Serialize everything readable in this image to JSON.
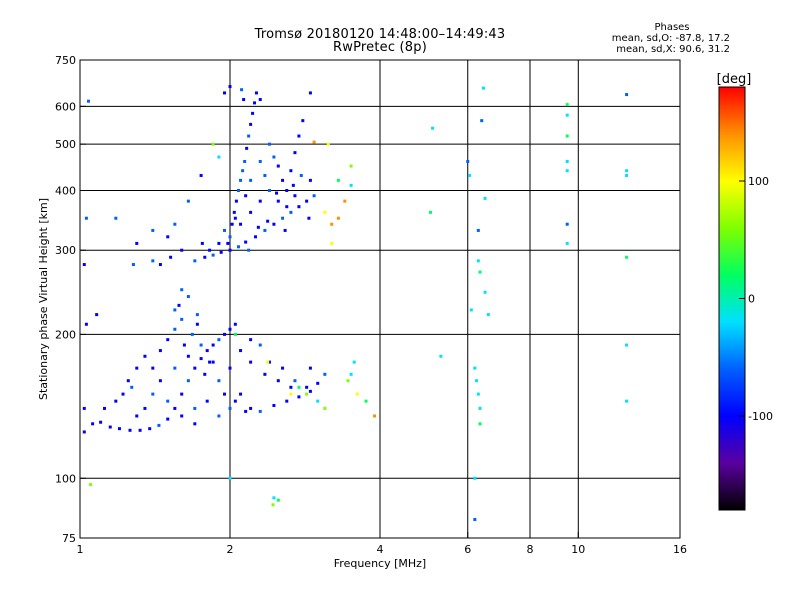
{
  "chart_data": {
    "type": "scatter",
    "title": "Tromsø 20180120 14:48:00–14:49:43",
    "subtitle": "RwPretec (8p)",
    "xlabel": "Frequency [MHz]",
    "ylabel": "Stationary phase Virtual Height [km]",
    "x_scale": "log",
    "y_scale": "log",
    "xlim": [
      1,
      16
    ],
    "ylim": [
      75,
      750
    ],
    "x_ticks": [
      1,
      2,
      4,
      6,
      8,
      10,
      16
    ],
    "x_tick_labels": [
      "1",
      "2",
      "4",
      "6",
      "8",
      "10",
      "16"
    ],
    "y_ticks": [
      75,
      100,
      200,
      300,
      400,
      500,
      600,
      750
    ],
    "y_tick_labels": [
      "75",
      "100",
      "200",
      "300",
      "400",
      "500",
      "600",
      "750"
    ],
    "x_gridlines": [
      2,
      4,
      6,
      8,
      10
    ],
    "y_gridlines": [
      100,
      200,
      300,
      400,
      500,
      600
    ],
    "grid": true,
    "colorbar": {
      "label": "[deg]",
      "range": [
        -180,
        180
      ],
      "ticks": [
        100,
        0,
        -100
      ],
      "tick_labels": [
        "100",
        "0",
        "-100"
      ],
      "colors": [
        "#000000",
        "#5a00a0",
        "#0000ff",
        "#0060ff",
        "#00e0ff",
        "#00ff60",
        "#80ff00",
        "#ffff00",
        "#ff9000",
        "#ff0000"
      ]
    },
    "phase_stats": {
      "header": "Phases",
      "line_o": "mean, sd,O:  -87.8, 17.2",
      "line_x": "mean, sd,X:  90.6, 31.2"
    },
    "series": [
      {
        "description": "O-mode F-region trace and blob (blue, phase about -90 deg)",
        "dominant_phase": -90,
        "points": [
          [
            1.06,
            130
          ],
          [
            1.1,
            131
          ],
          [
            1.15,
            128
          ],
          [
            1.2,
            127
          ],
          [
            1.26,
            126
          ],
          [
            1.32,
            126
          ],
          [
            1.38,
            127
          ],
          [
            1.44,
            129
          ],
          [
            1.5,
            133
          ],
          [
            1.55,
            140
          ],
          [
            1.6,
            150
          ],
          [
            1.65,
            160
          ],
          [
            1.7,
            170
          ],
          [
            1.75,
            178
          ],
          [
            1.8,
            185
          ],
          [
            1.85,
            190
          ],
          [
            1.9,
            195
          ],
          [
            1.95,
            200
          ],
          [
            2.0,
            205
          ],
          [
            2.05,
            210
          ],
          [
            1.45,
            185
          ],
          [
            1.5,
            195
          ],
          [
            1.55,
            205
          ],
          [
            1.6,
            215
          ],
          [
            1.58,
            230
          ],
          [
            1.62,
            190
          ],
          [
            1.68,
            200
          ],
          [
            1.72,
            210
          ],
          [
            1.78,
            165
          ],
          [
            1.82,
            175
          ],
          [
            1.9,
            160
          ],
          [
            2.1,
            150
          ],
          [
            2.2,
            140
          ],
          [
            2.3,
            138
          ],
          [
            2.45,
            142
          ],
          [
            2.6,
            145
          ],
          [
            2.75,
            148
          ],
          [
            2.9,
            152
          ],
          [
            3.0,
            158
          ],
          [
            3.1,
            165
          ],
          [
            2.2,
            175
          ],
          [
            2.35,
            165
          ],
          [
            2.5,
            160
          ],
          [
            2.7,
            160
          ],
          [
            2.85,
            155
          ],
          [
            1.7,
            140
          ],
          [
            1.8,
            145
          ],
          [
            1.95,
            150
          ],
          [
            2.05,
            145
          ],
          [
            2.15,
            138
          ],
          [
            1.4,
            150
          ],
          [
            1.35,
            140
          ],
          [
            1.3,
            135
          ],
          [
            1.25,
            160
          ],
          [
            1.3,
            170
          ],
          [
            1.35,
            180
          ],
          [
            1.4,
            170
          ],
          [
            1.45,
            160
          ],
          [
            1.55,
            170
          ],
          [
            1.65,
            180
          ],
          [
            1.75,
            190
          ],
          [
            1.85,
            175
          ],
          [
            2.0,
            170
          ],
          [
            2.1,
            185
          ],
          [
            2.2,
            195
          ],
          [
            2.3,
            190
          ],
          [
            2.4,
            175
          ],
          [
            2.55,
            170
          ],
          [
            2.65,
            155
          ],
          [
            2.9,
            170
          ],
          [
            1.5,
            145
          ],
          [
            1.6,
            135
          ],
          [
            1.7,
            130
          ],
          [
            1.9,
            135
          ],
          [
            2.0,
            140
          ],
          [
            1.55,
            225
          ],
          [
            1.65,
            240
          ],
          [
            1.6,
            248
          ],
          [
            1.72,
            220
          ],
          [
            1.08,
            220
          ],
          [
            1.03,
            210
          ],
          [
            1.02,
            140
          ],
          [
            1.02,
            125
          ],
          [
            1.12,
            140
          ],
          [
            1.18,
            145
          ],
          [
            1.22,
            150
          ],
          [
            1.27,
            155
          ]
        ]
      },
      {
        "description": "Upper F2 trace and cusp (blue/cyan)",
        "dominant_phase": -85,
        "points": [
          [
            1.7,
            285
          ],
          [
            1.78,
            290
          ],
          [
            1.85,
            293
          ],
          [
            1.92,
            297
          ],
          [
            2.0,
            300
          ],
          [
            2.08,
            305
          ],
          [
            2.15,
            312
          ],
          [
            2.25,
            320
          ],
          [
            2.35,
            330
          ],
          [
            2.45,
            340
          ],
          [
            2.55,
            350
          ],
          [
            2.65,
            360
          ],
          [
            2.75,
            370
          ],
          [
            2.85,
            380
          ],
          [
            2.95,
            390
          ],
          [
            2.0,
            320
          ],
          [
            2.02,
            340
          ],
          [
            2.04,
            360
          ],
          [
            2.06,
            380
          ],
          [
            2.08,
            400
          ],
          [
            2.1,
            420
          ],
          [
            2.12,
            440
          ],
          [
            2.14,
            460
          ],
          [
            2.16,
            490
          ],
          [
            2.18,
            520
          ],
          [
            2.2,
            550
          ],
          [
            2.22,
            580
          ],
          [
            2.24,
            610
          ],
          [
            2.26,
            640
          ],
          [
            2.3,
            620
          ],
          [
            2.4,
            500
          ],
          [
            2.45,
            470
          ],
          [
            2.5,
            450
          ],
          [
            2.55,
            420
          ],
          [
            2.6,
            400
          ],
          [
            2.65,
            440
          ],
          [
            2.7,
            480
          ],
          [
            2.75,
            520
          ],
          [
            2.8,
            560
          ],
          [
            2.2,
            360
          ],
          [
            2.3,
            380
          ],
          [
            2.4,
            400
          ],
          [
            2.5,
            380
          ],
          [
            2.6,
            370
          ],
          [
            2.7,
            390
          ],
          [
            1.95,
            330
          ],
          [
            1.9,
            310
          ],
          [
            1.82,
            300
          ],
          [
            1.76,
            310
          ],
          [
            1.6,
            300
          ],
          [
            1.52,
            290
          ],
          [
            1.45,
            280
          ],
          [
            1.4,
            285
          ],
          [
            1.3,
            310
          ],
          [
            1.28,
            280
          ],
          [
            2.1,
            340
          ],
          [
            2.2,
            420
          ],
          [
            2.3,
            460
          ],
          [
            2.35,
            430
          ],
          [
            2.15,
            390
          ],
          [
            2.05,
            350
          ],
          [
            1.98,
            310
          ],
          [
            2.18,
            300
          ],
          [
            2.28,
            335
          ],
          [
            2.38,
            345
          ],
          [
            2.48,
            395
          ],
          [
            2.58,
            330
          ],
          [
            2.68,
            410
          ],
          [
            2.78,
            430
          ],
          [
            2.88,
            350
          ],
          [
            2.9,
            420
          ],
          [
            2.13,
            620
          ],
          [
            2.11,
            650
          ],
          [
            1.95,
            640
          ],
          [
            2.0,
            660
          ],
          [
            1.75,
            430
          ],
          [
            1.65,
            380
          ],
          [
            1.55,
            340
          ],
          [
            1.5,
            320
          ],
          [
            1.4,
            330
          ],
          [
            1.18,
            350
          ],
          [
            1.02,
            280
          ],
          [
            1.03,
            350
          ],
          [
            1.04,
            615
          ],
          [
            2.9,
            640
          ]
        ]
      },
      {
        "description": "Scattered X-mode / high-frequency echoes (cyan to red)",
        "dominant_phase": 60,
        "points": [
          [
            3.1,
            360
          ],
          [
            3.2,
            340
          ],
          [
            3.3,
            350
          ],
          [
            3.4,
            380
          ],
          [
            3.5,
            410
          ],
          [
            3.5,
            450
          ],
          [
            3.3,
            420
          ],
          [
            3.2,
            310
          ],
          [
            3.45,
            160
          ],
          [
            3.6,
            150
          ],
          [
            3.75,
            145
          ],
          [
            3.9,
            135
          ],
          [
            3.5,
            165
          ],
          [
            3.55,
            175
          ],
          [
            3.1,
            140
          ],
          [
            3.0,
            145
          ],
          [
            2.85,
            150
          ],
          [
            2.75,
            155
          ],
          [
            2.65,
            150
          ],
          [
            3.15,
            500
          ],
          [
            2.95,
            505
          ],
          [
            2.5,
            90
          ],
          [
            2.45,
            91
          ],
          [
            2.44,
            88
          ],
          [
            1.85,
            500
          ],
          [
            1.9,
            470
          ],
          [
            2.05,
            200
          ],
          [
            1.05,
            97
          ],
          [
            2.0,
            100
          ],
          [
            2.38,
            175
          ]
        ]
      },
      {
        "description": "Isolated echoes 5-13 MHz",
        "dominant_phase": -20,
        "points": [
          [
            5.3,
            180
          ],
          [
            5.1,
            540
          ],
          [
            5.05,
            360
          ],
          [
            6.0,
            460
          ],
          [
            6.05,
            430
          ],
          [
            6.1,
            225
          ],
          [
            6.2,
            100
          ],
          [
            6.2,
            82
          ],
          [
            6.3,
            330
          ],
          [
            6.3,
            285
          ],
          [
            6.35,
            270
          ],
          [
            6.4,
            560
          ],
          [
            6.45,
            655
          ],
          [
            6.5,
            385
          ],
          [
            6.5,
            245
          ],
          [
            6.6,
            220
          ],
          [
            6.2,
            170
          ],
          [
            6.25,
            160
          ],
          [
            6.3,
            150
          ],
          [
            6.35,
            140
          ],
          [
            6.35,
            130
          ],
          [
            9.5,
            605
          ],
          [
            9.5,
            575
          ],
          [
            9.5,
            520
          ],
          [
            9.5,
            460
          ],
          [
            9.5,
            440
          ],
          [
            9.5,
            340
          ],
          [
            9.5,
            310
          ],
          [
            12.5,
            635
          ],
          [
            12.5,
            440
          ],
          [
            12.5,
            430
          ],
          [
            12.5,
            290
          ],
          [
            12.5,
            190
          ],
          [
            12.5,
            145
          ]
        ]
      }
    ]
  }
}
